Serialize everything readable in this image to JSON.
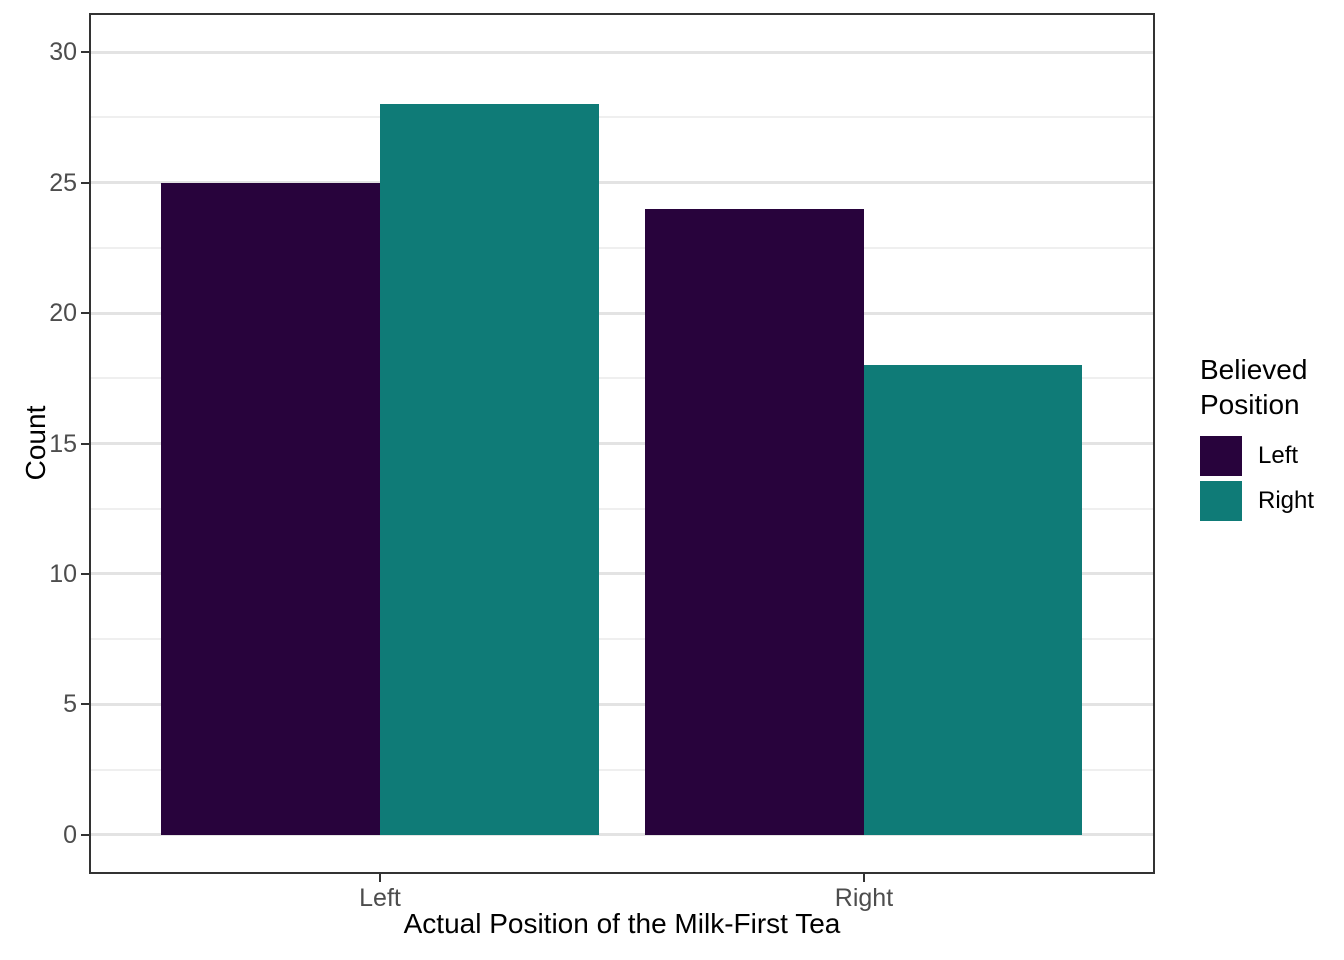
{
  "chart_data": {
    "type": "bar",
    "bar_mode": "dodge",
    "title": "",
    "xlabel": "Actual Position of the Milk-First Tea",
    "ylabel": "Count",
    "categories": [
      "Left",
      "Right"
    ],
    "series": [
      {
        "name": "Left",
        "color": "#28033C",
        "values": [
          25,
          24
        ]
      },
      {
        "name": "Right",
        "color": "#0F7B77",
        "values": [
          28,
          18
        ]
      }
    ],
    "ylim": [
      -1.5,
      31.5
    ],
    "yticks": [
      0,
      5,
      10,
      15,
      20,
      25,
      30
    ],
    "yminor": [
      2.5,
      7.5,
      12.5,
      17.5,
      22.5,
      27.5
    ],
    "grid": "horizontal-major-and-minor",
    "legend_title": "Believed Position",
    "legend_position": "right"
  },
  "legend": {
    "title": "Believed\nPosition"
  },
  "colors": {
    "background": "#FFFFFF",
    "panel_border": "#333333",
    "grid_major": "#E3E3E3",
    "grid_minor": "#EFEFEF",
    "tick_mark": "#333333",
    "tick_label": "#4D4D4D",
    "axis_title": "#000000"
  }
}
